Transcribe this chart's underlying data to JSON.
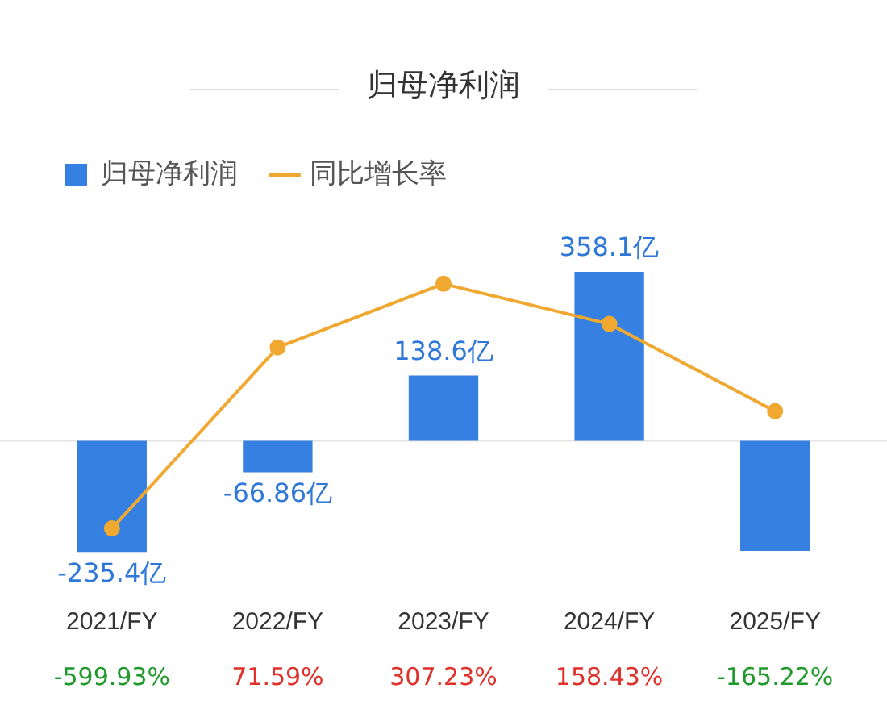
{
  "chart_data": {
    "type": "bar",
    "title": "归母净利润",
    "categories": [
      "2021/FY",
      "2022/FY",
      "2023/FY",
      "2024/FY",
      "2025/FY"
    ],
    "series": [
      {
        "name": "归母净利润",
        "color": "#3580e0",
        "values": [
          -235.4,
          -66.86,
          138.6,
          358.1,
          -233.5
        ],
        "value_labels": [
          "-235.4亿",
          "-66.86亿",
          "138.6亿",
          "358.1亿",
          null
        ]
      },
      {
        "name": "同比增长率",
        "type": "line",
        "axis": "y2",
        "color": "#f0a830",
        "values": [
          -599.93,
          71.59,
          307.23,
          158.43,
          -165.22
        ],
        "value_labels": [
          "-599.93%",
          "71.59%",
          "307.23%",
          "158.43%",
          "-165.22%"
        ]
      }
    ],
    "legend": "top left",
    "marker": "circle",
    "grid": false,
    "tick_labels": "x"
  }
}
